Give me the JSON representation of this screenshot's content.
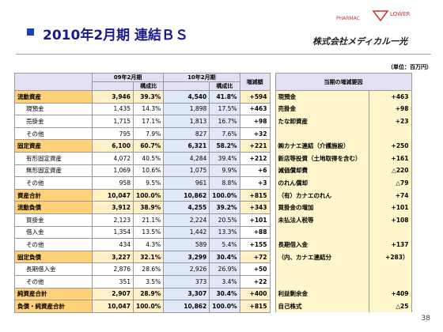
{
  "header": {
    "title": "2010年2月期 連結ＢＳ",
    "logo_left": "PHARMAC",
    "logo_right": "LOWER",
    "company": "株式会社メディカル一光",
    "unit": "（単位：百万円）"
  },
  "table": {
    "columns": {
      "period1": "09年2月期",
      "period2": "10年2月期",
      "ratio1": "構成比",
      "ratio2": "構成比",
      "diff": "増減額",
      "reasons": "当期の増減要因"
    },
    "rows": [
      [
        "流動資産",
        "3,946",
        "39.3%",
        "4,540",
        "41.8%",
        "+594"
      ],
      [
        "現預金",
        "1,435",
        "14.3%",
        "1,898",
        "17.5%",
        "+463"
      ],
      [
        "売掛金",
        "1,715",
        "17.1%",
        "1,813",
        "16.7%",
        "+98"
      ],
      [
        "その他",
        "795",
        "7.9%",
        "827",
        "7.6%",
        "+32"
      ],
      [
        "固定資産",
        "6,100",
        "60.7%",
        "6,321",
        "58.2%",
        "+221"
      ],
      [
        "有形固定資産",
        "4,072",
        "40.5%",
        "4,284",
        "39.4%",
        "+212"
      ],
      [
        "無形固定資産",
        "1,069",
        "10.6%",
        "1,075",
        "9.9%",
        "+6"
      ],
      [
        "その他",
        "958",
        "9.5%",
        "961",
        "8.8%",
        "+3"
      ],
      [
        "資産合計",
        "10,047",
        "100.0%",
        "10,862",
        "100.0%",
        "+815"
      ],
      [
        "流動負債",
        "3,912",
        "38.9%",
        "4,255",
        "39.2%",
        "+343"
      ],
      [
        "買掛金",
        "2,123",
        "21.1%",
        "2,224",
        "20.5%",
        "+101"
      ],
      [
        "借入金",
        "1,354",
        "13.5%",
        "1,442",
        "13.3%",
        "+88"
      ],
      [
        "その他",
        "434",
        "4.3%",
        "589",
        "5.4%",
        "+155"
      ],
      [
        "固定負債",
        "3,227",
        "32.1%",
        "3,299",
        "30.4%",
        "+72"
      ],
      [
        "長期借入金",
        "2,876",
        "28.6%",
        "2,926",
        "26.9%",
        "+50"
      ],
      [
        "その他",
        "351",
        "3.5%",
        "373",
        "3.4%",
        "+22"
      ],
      [
        "純資産合計",
        "2,907",
        "28.9%",
        "3,307",
        "30.4%",
        "+400"
      ],
      [
        "負債・純資産合計",
        "10,047",
        "100.0%",
        "10,862",
        "100.0%",
        "+815"
      ]
    ],
    "reasons": [
      [
        "現預金",
        "+463"
      ],
      [
        "売掛金",
        "+98"
      ],
      [
        "たな卸資産",
        "+23"
      ],
      [
        "㈱カナエ連結（介護施設）",
        "+250"
      ],
      [
        "新店等投資（土地取得を含む）",
        "+161"
      ],
      [
        "減価償却費",
        "△220"
      ],
      [
        "のれん償却",
        "△79"
      ],
      [
        "（有）カナエのれん",
        "+74"
      ],
      [
        "買掛金の増加",
        "+101"
      ],
      [
        "未払法人税等",
        "+108"
      ],
      [
        "長期借入金",
        "+137"
      ],
      [
        "（内、カナエ連結分",
        "+283）"
      ],
      [
        "利益剰余金",
        "+409"
      ],
      [
        "自己株式",
        "△25"
      ]
    ]
  },
  "footer": {
    "page": "38"
  }
}
